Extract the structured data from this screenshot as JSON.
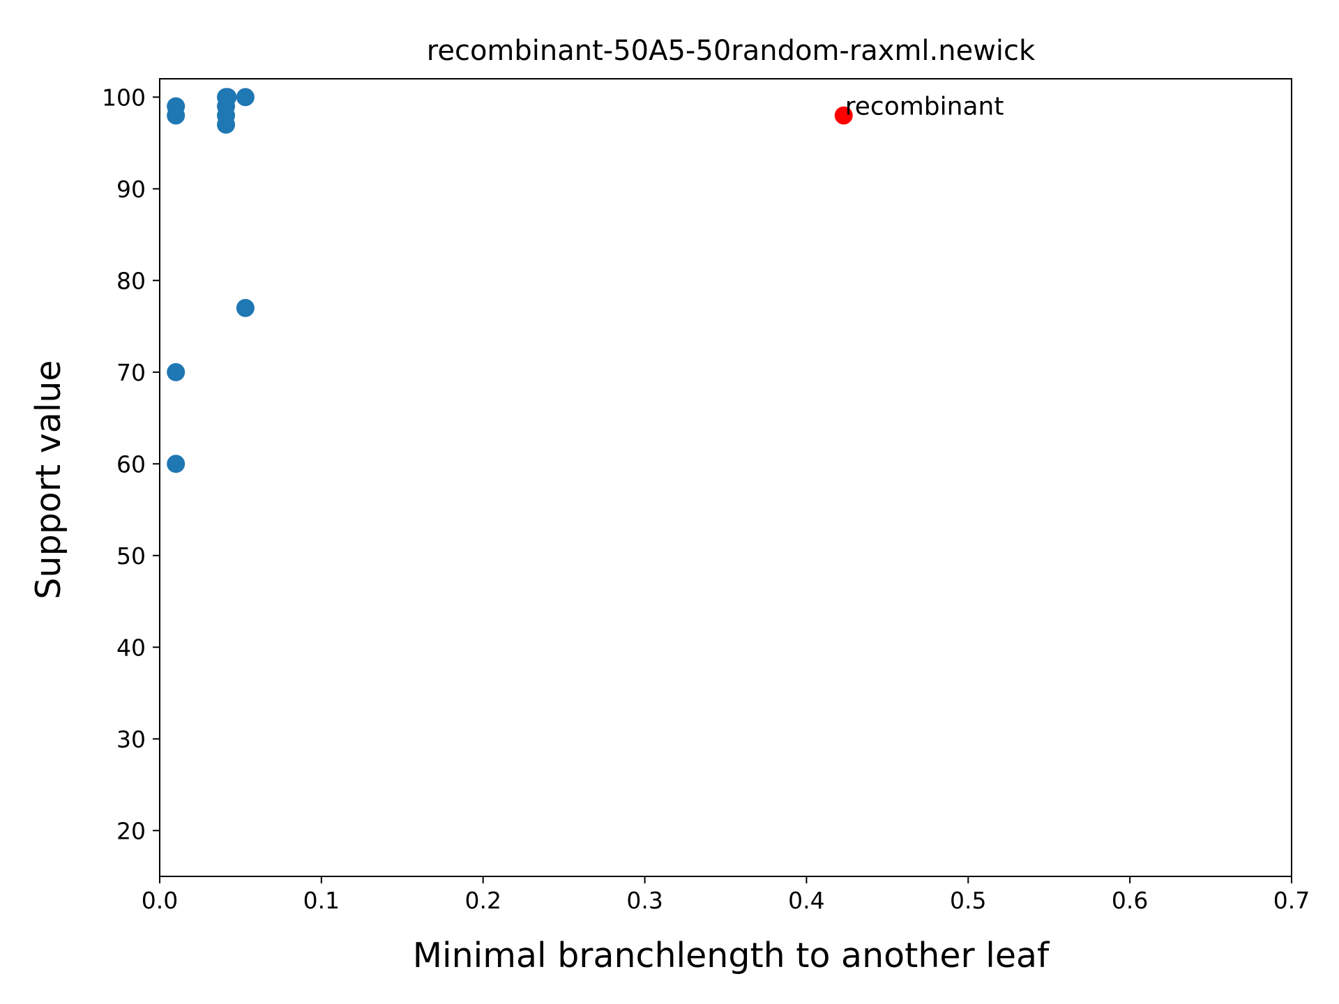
{
  "chart_data": {
    "type": "scatter",
    "title": "recombinant-50A5-50random-raxml.newick",
    "xlabel": "Minimal branchlength to another leaf",
    "ylabel": "Support value",
    "xlim": [
      0.0,
      0.7
    ],
    "ylim": [
      15,
      102
    ],
    "xticks": [
      0.0,
      0.1,
      0.2,
      0.3,
      0.4,
      0.5,
      0.6,
      0.7
    ],
    "xtick_labels": [
      "0.0",
      "0.1",
      "0.2",
      "0.3",
      "0.4",
      "0.5",
      "0.6",
      "0.7"
    ],
    "yticks": [
      20,
      30,
      40,
      50,
      60,
      70,
      80,
      90,
      100
    ],
    "ytick_labels": [
      "20",
      "30",
      "40",
      "50",
      "60",
      "70",
      "80",
      "90",
      "100"
    ],
    "grid": false,
    "legend": "none",
    "series": [
      {
        "color": "#1f77b4",
        "points": [
          {
            "x": 0.01,
            "y": 99
          },
          {
            "x": 0.01,
            "y": 98
          },
          {
            "x": 0.01,
            "y": 70
          },
          {
            "x": 0.01,
            "y": 60
          },
          {
            "x": 0.041,
            "y": 100
          },
          {
            "x": 0.042,
            "y": 100
          },
          {
            "x": 0.041,
            "y": 99
          },
          {
            "x": 0.041,
            "y": 98
          },
          {
            "x": 0.041,
            "y": 97
          },
          {
            "x": 0.053,
            "y": 100
          },
          {
            "x": 0.053,
            "y": 77
          }
        ]
      },
      {
        "color": "#ff0000",
        "points": [
          {
            "x": 0.423,
            "y": 98
          }
        ]
      }
    ],
    "annotations": [
      {
        "text": "recombinant",
        "x": 0.423,
        "y": 98
      }
    ]
  }
}
